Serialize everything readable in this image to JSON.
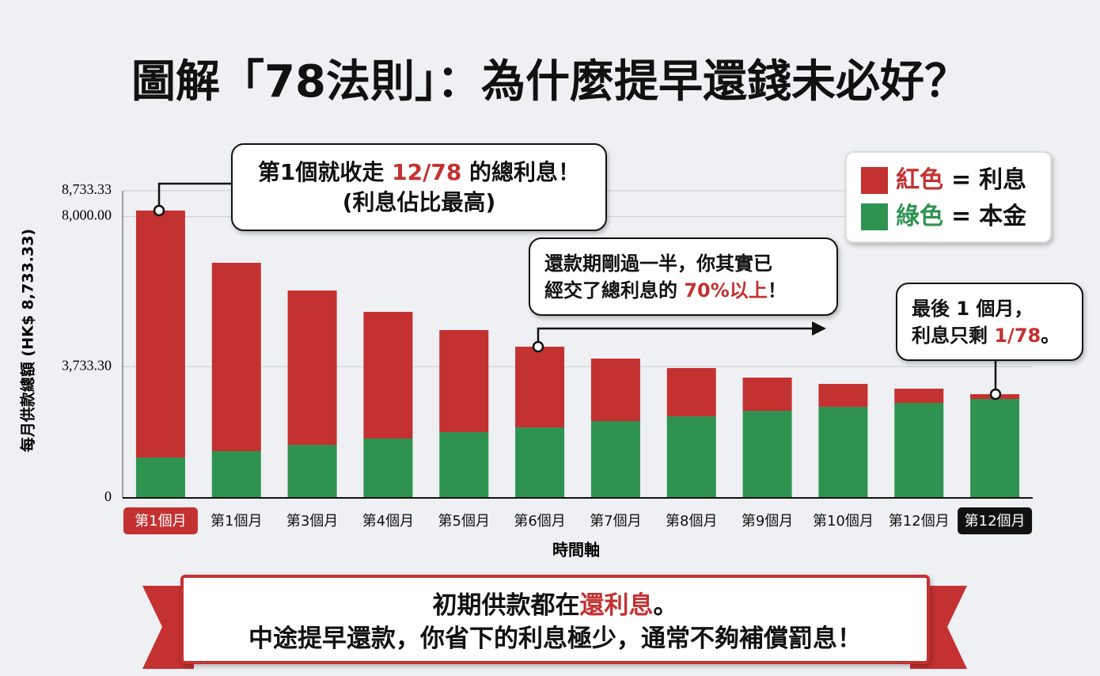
{
  "chart_data": {
    "type": "stacked_bar",
    "title": "圖解「78法則」：為什麼提早還錢未必好？",
    "y_label": "每月供款總額 (HK$ 8,733.33)",
    "x_label": "時間軸",
    "categories": [
      "第1個月",
      "第1個月",
      "第3個月",
      "第4個月",
      "第5個月",
      "第6個月",
      "第7個月",
      "第8個月",
      "第9個月",
      "第10個月",
      "第12個月",
      "第12個月"
    ],
    "series": [
      {
        "name": "本金",
        "color_label": "綠色",
        "color": "#2e9350",
        "values": [
          1148,
          1328,
          1508,
          1688,
          1868,
          2003,
          2183,
          2318,
          2476,
          2589,
          2701,
          2814
        ]
      },
      {
        "name": "利息",
        "color_label": "紅色",
        "color": "#c43131",
        "values": [
          7023,
          5357,
          4389,
          3602,
          2904,
          2296,
          1778,
          1373,
          945,
          653,
          405,
          135
        ]
      }
    ],
    "legend_equals": "=",
    "ylim": [
      0,
      8733.33
    ],
    "yticks": [
      0,
      {
        "value": 3733.3,
        "label": "3,733.30"
      },
      {
        "value": 8000,
        "label": "8,000.00"
      },
      {
        "value": 8733.33,
        "label": "8,733.33"
      }
    ],
    "grid": true,
    "annotations": [
      {
        "lines": [
          [
            {
              "text": "第1個就收走 "
            },
            {
              "text": "12/78",
              "em": true
            },
            {
              "text": " 的總利息！"
            }
          ],
          [
            {
              "text": "(利息佔比最高)"
            }
          ]
        ]
      },
      {
        "lines": [
          [
            {
              "text": "還款期剛過一半，你其實已"
            }
          ],
          [
            {
              "text": "經交了總利息的 "
            },
            {
              "text": "70%以上",
              "em": true
            },
            {
              "text": "！"
            }
          ]
        ]
      },
      {
        "lines": [
          [
            {
              "text": "最後 1 個月，"
            }
          ],
          [
            {
              "text": "利息只剩 "
            },
            {
              "text": "1/78",
              "em": true
            },
            {
              "text": "。"
            }
          ]
        ]
      }
    ],
    "banner": [
      [
        {
          "text": "初期供款都在"
        },
        {
          "text": "還利息",
          "em": true
        },
        {
          "text": "。"
        }
      ],
      [
        {
          "text": "中途提早還款，你省下的利息極少，通常不夠補償罰息！"
        }
      ]
    ]
  }
}
